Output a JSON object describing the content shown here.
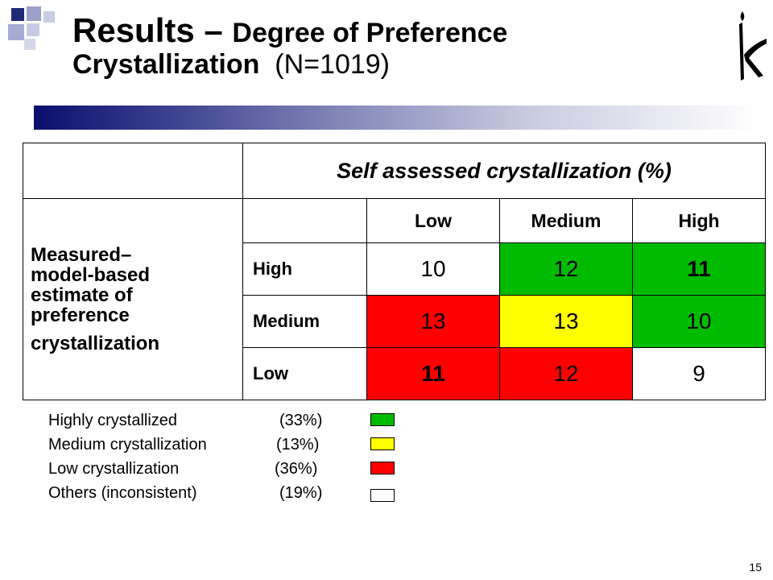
{
  "title": {
    "main": "Results – ",
    "sub": "Degree of Preference",
    "line2_bold": "Crystallization",
    "line2_n": "(N=1019)"
  },
  "colors": {
    "green": "#00bb00",
    "yellow": "#ffff00",
    "red": "#ff0000",
    "white": "#ffffff",
    "accent_bar": "#0a0f6e"
  },
  "table": {
    "header": "Self assessed crystallization (%)",
    "row_label": {
      "lines": [
        "Measured–",
        "model-based",
        "estimate of",
        "preference",
        "crystallization"
      ]
    },
    "columns": [
      "Low",
      "Medium",
      "High"
    ],
    "rows": [
      {
        "label": "High",
        "cells": [
          {
            "value": "10",
            "color": "white",
            "bold": false
          },
          {
            "value": "12",
            "color": "green",
            "bold": false
          },
          {
            "value": "11",
            "color": "green",
            "bold": true
          }
        ]
      },
      {
        "label": "Medium",
        "cells": [
          {
            "value": "13",
            "color": "red",
            "bold": false
          },
          {
            "value": "13",
            "color": "yellow",
            "bold": false
          },
          {
            "value": "10",
            "color": "green",
            "bold": false
          }
        ]
      },
      {
        "label": "Low",
        "cells": [
          {
            "value": "11",
            "color": "red",
            "bold": true
          },
          {
            "value": "12",
            "color": "red",
            "bold": false
          },
          {
            "value": "9",
            "color": "white",
            "bold": false
          }
        ]
      }
    ]
  },
  "legend": [
    {
      "label": "Highly crystallized",
      "pct": "(33%)",
      "color": "green"
    },
    {
      "label": "Medium crystallization",
      "pct": "(13%)",
      "color": "yellow"
    },
    {
      "label": "Low crystallization",
      "pct": "(36%)",
      "color": "red"
    },
    {
      "label": "Others (inconsistent)",
      "pct": "(19%)",
      "color": "white"
    }
  ],
  "page_number": "15",
  "logo_icon": "candle-logo-icon"
}
